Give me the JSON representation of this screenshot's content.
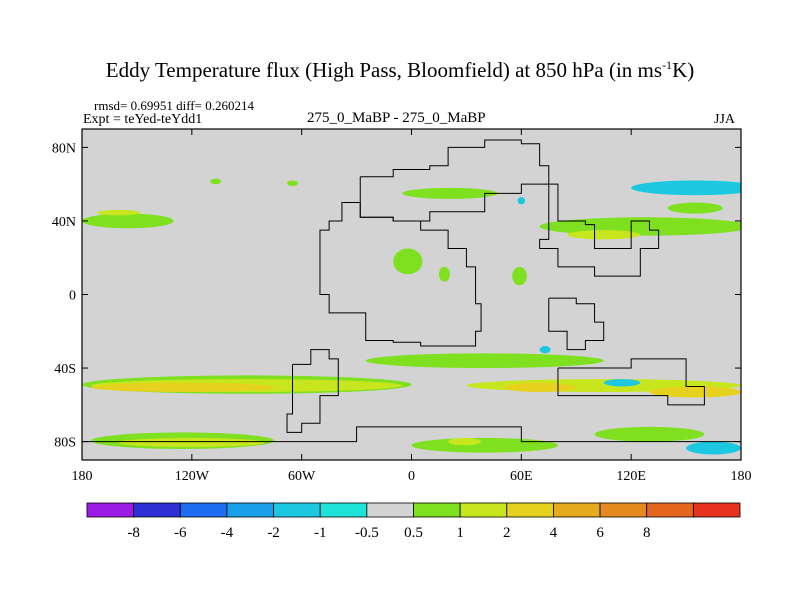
{
  "header": {
    "title_main": "Eddy Temperature flux (High Pass, Bloomfield) at 850 hPa (in ms",
    "title_sup": "-1",
    "title_end": "K)",
    "stats": "rmsd= 0.69951 diff= 0.260214",
    "expt": "Expt = teYed-teYdd1",
    "case": "275_0_MaBP - 275_0_MaBP",
    "season": "JJA"
  },
  "colors": {
    "ocean": "#d3d3d3",
    "levels": [
      "#9c1ce6",
      "#2f2fd6",
      "#1e6cf0",
      "#1aa0e8",
      "#1cc8e0",
      "#1de3d8",
      "#d3d3d3",
      "#7ee01e",
      "#c8e61e",
      "#e6d21e",
      "#e6aa1e",
      "#e68a1e",
      "#e6661e",
      "#e6321e"
    ]
  },
  "chart_data": {
    "type": "heatmap",
    "title": "Eddy Temperature flux (High Pass, Bloomfield) at 850 hPa (in ms-1K)",
    "xlabel": "",
    "ylabel": "",
    "xlim": [
      -180,
      180
    ],
    "ylim": [
      -90,
      90
    ],
    "xticks": [
      {
        "value": -180,
        "label": "180"
      },
      {
        "value": -120,
        "label": "120W"
      },
      {
        "value": -60,
        "label": "60W"
      },
      {
        "value": 0,
        "label": "0"
      },
      {
        "value": 60,
        "label": "60E"
      },
      {
        "value": 120,
        "label": "120E"
      },
      {
        "value": 180,
        "label": "180"
      }
    ],
    "yticks": [
      {
        "value": 80,
        "label": "80N"
      },
      {
        "value": 40,
        "label": "40N"
      },
      {
        "value": 0,
        "label": "0"
      },
      {
        "value": -40,
        "label": "40S"
      },
      {
        "value": -80,
        "label": "80S"
      }
    ],
    "colorbar": {
      "levels": [
        -8,
        -6,
        -4,
        -2,
        -1,
        -0.5,
        0.5,
        1,
        2,
        4,
        6,
        8
      ],
      "labels": [
        "-8",
        "-6",
        "-4",
        "-2",
        "-1",
        "-0.5",
        "0.5",
        "1",
        "2",
        "4",
        "6",
        "8"
      ]
    },
    "features": [
      {
        "lon": -180,
        "lat": 44,
        "w": 50,
        "h": 8,
        "level": 1
      },
      {
        "lon": -172,
        "lat": 46,
        "w": 24,
        "h": 3,
        "level": 2
      },
      {
        "lon": -110,
        "lat": 63,
        "w": 6,
        "h": 3,
        "level": 1
      },
      {
        "lon": -68,
        "lat": 62,
        "w": 6,
        "h": 3,
        "level": 1
      },
      {
        "lon": -5,
        "lat": 58,
        "w": 52,
        "h": 6,
        "level": 1
      },
      {
        "lon": -10,
        "lat": 25,
        "w": 16,
        "h": 14,
        "level": 1
      },
      {
        "lon": 15,
        "lat": 15,
        "w": 6,
        "h": 8,
        "level": 1
      },
      {
        "lon": 55,
        "lat": 15,
        "w": 8,
        "h": 10,
        "level": 1
      },
      {
        "lon": 70,
        "lat": 42,
        "w": 115,
        "h": 10,
        "level": 1
      },
      {
        "lon": 85,
        "lat": 35,
        "w": 40,
        "h": 5,
        "level": 2
      },
      {
        "lon": 120,
        "lat": 62,
        "w": 70,
        "h": 8,
        "level": -1
      },
      {
        "lon": 140,
        "lat": 50,
        "w": 30,
        "h": 6,
        "level": 1
      },
      {
        "lon": 58,
        "lat": 53,
        "w": 4,
        "h": 4,
        "level": -1
      },
      {
        "lon": 70,
        "lat": -28,
        "w": 6,
        "h": 4,
        "level": -1
      },
      {
        "lon": -180,
        "lat": -44,
        "w": 180,
        "h": 10,
        "level": 1
      },
      {
        "lon": -175,
        "lat": -46,
        "w": 170,
        "h": 7,
        "level": 2
      },
      {
        "lon": -175,
        "lat": -48,
        "w": 100,
        "h": 5,
        "level": 4
      },
      {
        "lon": -25,
        "lat": -32,
        "w": 130,
        "h": 8,
        "level": 1
      },
      {
        "lon": 30,
        "lat": -46,
        "w": 150,
        "h": 7,
        "level": 2
      },
      {
        "lon": 50,
        "lat": -48,
        "w": 40,
        "h": 5,
        "level": 4
      },
      {
        "lon": 105,
        "lat": -46,
        "w": 20,
        "h": 4,
        "level": -1
      },
      {
        "lon": 130,
        "lat": -50,
        "w": 50,
        "h": 6,
        "level": 4
      },
      {
        "lon": -175,
        "lat": -75,
        "w": 100,
        "h": 9,
        "level": 1
      },
      {
        "lon": -160,
        "lat": -78,
        "w": 80,
        "h": 5,
        "level": 2
      },
      {
        "lon": 0,
        "lat": -78,
        "w": 80,
        "h": 8,
        "level": 1
      },
      {
        "lon": 20,
        "lat": -78,
        "w": 18,
        "h": 4,
        "level": 2
      },
      {
        "lon": 100,
        "lat": -72,
        "w": 60,
        "h": 8,
        "level": 1
      },
      {
        "lon": 150,
        "lat": -80,
        "w": 30,
        "h": 7,
        "level": -1
      }
    ],
    "coastlines": [
      [
        [
          -28,
          64
        ],
        [
          -10,
          68
        ],
        [
          10,
          70
        ],
        [
          20,
          80
        ],
        [
          40,
          84
        ],
        [
          60,
          82
        ],
        [
          70,
          70
        ],
        [
          75,
          60
        ],
        [
          60,
          55
        ],
        [
          40,
          45
        ],
        [
          10,
          40
        ],
        [
          -10,
          42
        ],
        [
          -28,
          50
        ],
        [
          -28,
          64
        ]
      ],
      [
        [
          -28,
          50
        ],
        [
          -38,
          40
        ],
        [
          -45,
          35
        ],
        [
          -50,
          22
        ],
        [
          -50,
          0
        ],
        [
          -45,
          -10
        ],
        [
          -25,
          -25
        ],
        [
          -10,
          -26
        ],
        [
          5,
          -28
        ],
        [
          25,
          -28
        ],
        [
          35,
          -20
        ],
        [
          38,
          -5
        ],
        [
          35,
          15
        ],
        [
          30,
          25
        ],
        [
          20,
          35
        ],
        [
          5,
          40
        ],
        [
          -10,
          42
        ],
        [
          -28,
          50
        ]
      ],
      [
        [
          75,
          60
        ],
        [
          80,
          40
        ],
        [
          95,
          38
        ],
        [
          100,
          25
        ],
        [
          110,
          25
        ],
        [
          120,
          40
        ],
        [
          130,
          35
        ],
        [
          135,
          25
        ],
        [
          125,
          10
        ],
        [
          100,
          15
        ],
        [
          80,
          25
        ],
        [
          70,
          30
        ],
        [
          75,
          60
        ]
      ],
      [
        [
          75,
          -2
        ],
        [
          90,
          -5
        ],
        [
          100,
          -15
        ],
        [
          105,
          -25
        ],
        [
          95,
          -30
        ],
        [
          85,
          -20
        ],
        [
          75,
          -2
        ]
      ],
      [
        [
          -65,
          -38
        ],
        [
          -55,
          -30
        ],
        [
          -45,
          -35
        ],
        [
          -40,
          -55
        ],
        [
          -50,
          -70
        ],
        [
          -60,
          -75
        ],
        [
          -68,
          -65
        ],
        [
          -65,
          -38
        ]
      ],
      [
        [
          -180,
          -80
        ],
        [
          -60,
          -80
        ],
        [
          -30,
          -72
        ],
        [
          0,
          -72
        ],
        [
          60,
          -80
        ],
        [
          180,
          -80
        ]
      ],
      [
        [
          80,
          -40
        ],
        [
          120,
          -35
        ],
        [
          150,
          -50
        ],
        [
          160,
          -60
        ],
        [
          140,
          -55
        ],
        [
          110,
          -55
        ],
        [
          80,
          -40
        ]
      ]
    ]
  }
}
